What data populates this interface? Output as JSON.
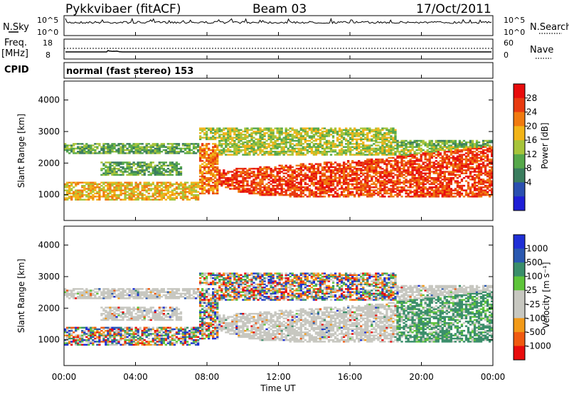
{
  "header": {
    "station": "Pykkvibaer (fitACF)",
    "beam": "Beam 03",
    "date": "17/Oct/2011"
  },
  "status_panels": {
    "nsky_label": "N.Sky",
    "nsearch_label": "N.Search",
    "freq_label": "Freq.",
    "freq_unit": "[MHz]",
    "nave_label": "Nave",
    "cpid_label": "CPID",
    "cpid_text": "normal (fast stereo) 153",
    "noise_ticks_left": [
      "10^5",
      "10^0"
    ],
    "noise_ticks_right": [
      "10^5",
      "10^0"
    ],
    "freq_ticks_left": [
      "18",
      "8"
    ],
    "nave_ticks_right": [
      "60",
      "0"
    ]
  },
  "colors": {
    "power": [
      "#1f1fd6",
      "#2a4fb0",
      "#3a7d5e",
      "#56a84a",
      "#a7c43a",
      "#f2b418",
      "#f07a10",
      "#e83a10",
      "#e80c0c"
    ],
    "velocity": [
      "#e80c0c",
      "#f05a10",
      "#f29a18",
      "#c7c7c0",
      "#c7c7c0",
      "#5ec43a",
      "#3a8e6a",
      "#2a58b0",
      "#1f2fd6"
    ],
    "ground_scatter": "#c7c7c0"
  },
  "chart_data": [
    {
      "type": "heatmap",
      "title": "Power",
      "xlabel": "Time UT",
      "ylabel": "Slant Range [km]",
      "xlim": [
        "00:00",
        "24:00"
      ],
      "ylim": [
        180,
        4600
      ],
      "x_ticks": [
        "00:00",
        "04:00",
        "08:00",
        "12:00",
        "16:00",
        "20:00",
        "00:00"
      ],
      "y_ticks": [
        1000,
        2000,
        3000,
        4000
      ],
      "colorbar": {
        "label": "Power [dB]",
        "ticks": [
          "28",
          "24",
          "20",
          "16",
          "12",
          "8",
          "4"
        ]
      }
    },
    {
      "type": "heatmap",
      "title": "Velocity",
      "xlabel": "Time UT",
      "ylabel": "Slant Range [km]",
      "xlim": [
        "00:00",
        "24:00"
      ],
      "ylim": [
        180,
        4600
      ],
      "x_ticks": [
        "00:00",
        "04:00",
        "08:00",
        "12:00",
        "16:00",
        "20:00",
        "00:00"
      ],
      "y_ticks": [
        1000,
        2000,
        3000,
        4000
      ],
      "colorbar": {
        "label": "Velocity [m s⁻¹]",
        "ticks": [
          "1000",
          "500",
          "100",
          "25",
          "-25",
          "-100",
          "-500",
          "-1000"
        ]
      }
    }
  ],
  "axis": {
    "time_label": "Time UT",
    "x_ticks": [
      "00:00",
      "04:00",
      "08:00",
      "12:00",
      "16:00",
      "20:00",
      "00:00"
    ]
  }
}
